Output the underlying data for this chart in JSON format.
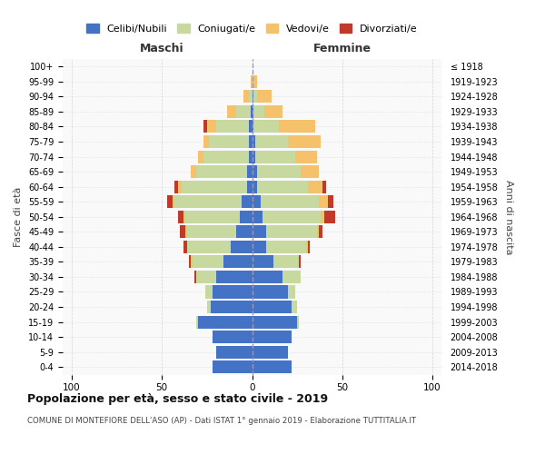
{
  "age_groups": [
    "0-4",
    "5-9",
    "10-14",
    "15-19",
    "20-24",
    "25-29",
    "30-34",
    "35-39",
    "40-44",
    "45-49",
    "50-54",
    "55-59",
    "60-64",
    "65-69",
    "70-74",
    "75-79",
    "80-84",
    "85-89",
    "90-94",
    "95-99",
    "100+"
  ],
  "birth_years": [
    "2014-2018",
    "2009-2013",
    "2004-2008",
    "1999-2003",
    "1994-1998",
    "1989-1993",
    "1984-1988",
    "1979-1983",
    "1974-1978",
    "1969-1973",
    "1964-1968",
    "1959-1963",
    "1954-1958",
    "1949-1953",
    "1944-1948",
    "1939-1943",
    "1934-1938",
    "1929-1933",
    "1924-1928",
    "1919-1923",
    "≤ 1918"
  ],
  "maschi": {
    "celibi": [
      22,
      20,
      22,
      30,
      23,
      22,
      20,
      16,
      12,
      9,
      7,
      6,
      3,
      3,
      2,
      2,
      2,
      1,
      0,
      0,
      0
    ],
    "coniugati": [
      0,
      0,
      0,
      1,
      2,
      4,
      11,
      17,
      24,
      27,
      30,
      37,
      36,
      28,
      25,
      22,
      18,
      8,
      2,
      0,
      0
    ],
    "vedovi": [
      0,
      0,
      0,
      0,
      0,
      0,
      0,
      1,
      0,
      1,
      1,
      1,
      2,
      3,
      3,
      3,
      5,
      5,
      3,
      1,
      0
    ],
    "divorziati": [
      0,
      0,
      0,
      0,
      0,
      0,
      1,
      1,
      2,
      3,
      3,
      3,
      2,
      0,
      0,
      0,
      2,
      0,
      0,
      0,
      0
    ]
  },
  "femmine": {
    "nubili": [
      22,
      20,
      22,
      25,
      22,
      20,
      17,
      12,
      8,
      8,
      6,
      5,
      3,
      3,
      2,
      2,
      1,
      1,
      1,
      0,
      0
    ],
    "coniugate": [
      0,
      0,
      0,
      1,
      3,
      4,
      10,
      14,
      22,
      28,
      32,
      32,
      28,
      24,
      22,
      18,
      14,
      6,
      2,
      0,
      0
    ],
    "vedove": [
      0,
      0,
      0,
      0,
      0,
      0,
      0,
      0,
      1,
      1,
      2,
      5,
      8,
      10,
      12,
      18,
      20,
      10,
      8,
      3,
      0
    ],
    "divorziate": [
      0,
      0,
      0,
      0,
      0,
      0,
      0,
      1,
      1,
      2,
      6,
      3,
      2,
      0,
      0,
      0,
      0,
      0,
      0,
      0,
      0
    ]
  },
  "colors": {
    "celibi_nubili": "#4472C4",
    "coniugati": "#c8d9a0",
    "vedovi": "#f5c26b",
    "divorziati": "#c0392b"
  },
  "xlim": [
    -105,
    105
  ],
  "xticks": [
    -100,
    -50,
    0,
    50,
    100
  ],
  "xticklabels": [
    "100",
    "50",
    "0",
    "50",
    "100"
  ],
  "title": "Popolazione per età, sesso e stato civile - 2019",
  "subtitle": "COMUNE DI MONTEFIORE DELL'ASO (AP) - Dati ISTAT 1° gennaio 2019 - Elaborazione TUTTITALIA.IT",
  "ylabel_left": "Fasce di età",
  "ylabel_right": "Anni di nascita",
  "label_maschi": "Maschi",
  "label_femmine": "Femmine",
  "legend_labels": [
    "Celibi/Nubili",
    "Coniugati/e",
    "Vedovi/e",
    "Divorziati/e"
  ],
  "bar_height": 0.85,
  "background_color": "#ffffff",
  "grid_color": "#cccccc",
  "plot_bg": "#f9f9f9"
}
